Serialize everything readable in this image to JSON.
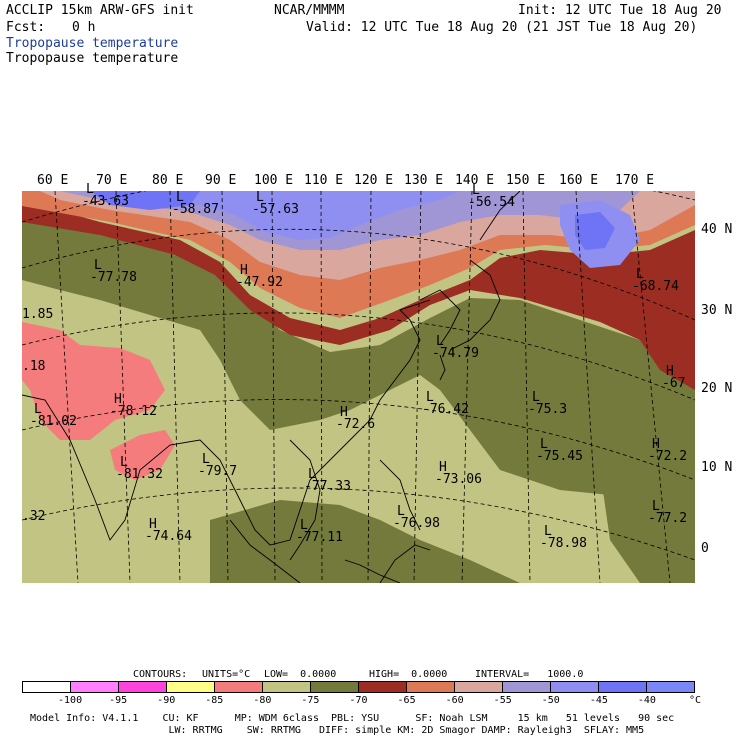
{
  "header": {
    "model_line": "ACCLIP 15km ARW-GFS init",
    "center": "NCAR/MMMM",
    "init": "Init: 12 UTC Tue 18 Aug 20",
    "fcst_label": "Fcst:",
    "fcst_value": "0 h",
    "valid": "Valid: 12 UTC Tue 18 Aug 20 (21 JST Tue 18 Aug 20)",
    "field_blue": "Tropopause temperature",
    "field_black": "Tropopause temperature"
  },
  "map": {
    "lon_labels": [
      "60 E",
      "70 E",
      "80 E",
      "90 E",
      "100 E",
      "110 E",
      "120 E",
      "130 E",
      "140 E",
      "150 E",
      "160 E",
      "170 E"
    ],
    "lat_labels": [
      "40 N",
      "30 N",
      "20 N",
      "10 N",
      "0"
    ],
    "extrema": [
      {
        "mark": "L",
        "value": "-43.63"
      },
      {
        "mark": "L",
        "value": "-58.87"
      },
      {
        "mark": "L",
        "value": "-57.63"
      },
      {
        "mark": "L",
        "value": "-56.54"
      },
      {
        "mark": "L",
        "value": "-77.78"
      },
      {
        "mark": "H",
        "value": "-47.92"
      },
      {
        "mark": "L",
        "value": "-68.74"
      },
      {
        "mark": "",
        "value": "1.85"
      },
      {
        "mark": "L",
        "value": "-74.79"
      },
      {
        "mark": "",
        "value": ".18"
      },
      {
        "mark": "H",
        "value": "-67"
      },
      {
        "mark": "H",
        "value": "-78.12"
      },
      {
        "mark": "L",
        "value": "-81.02"
      },
      {
        "mark": "H",
        "value": "-72.6"
      },
      {
        "mark": "L",
        "value": "-76.42"
      },
      {
        "mark": "L",
        "value": "-75.3"
      },
      {
        "mark": "L",
        "value": "-75.45"
      },
      {
        "mark": "H",
        "value": "-72.2"
      },
      {
        "mark": "L",
        "value": "-81.32"
      },
      {
        "mark": "L",
        "value": "-79.7"
      },
      {
        "mark": "L",
        "value": "-77.33"
      },
      {
        "mark": "H",
        "value": "-73.06"
      },
      {
        "mark": "",
        "value": ".32"
      },
      {
        "mark": "H",
        "value": "-74.64"
      },
      {
        "mark": "L",
        "value": "-77.11"
      },
      {
        "mark": "L",
        "value": "-76.98"
      },
      {
        "mark": "L",
        "value": "-78.98"
      },
      {
        "mark": "L",
        "value": "-77.2"
      }
    ],
    "colors": {
      "lt_-95": "#ff7fff",
      "-95_-90": "#ff44dd",
      "-90_-85": "#ffff88",
      "-85_-80": "#f57c7c",
      "-80_-75": "#c2c483",
      "-75_-70": "#737a3b",
      "-70_-65": "#9b2d22",
      "-65_-60": "#dd7a55",
      "-60_-55": "#d9a79d",
      "-55_-50": "#a096d6",
      "-50_-45": "#8f8ff2",
      "-45_-40": "#6f73f5",
      "ocean_white": "#ffffff"
    }
  },
  "contours_line": {
    "label": "CONTOURS:",
    "units": "UNITS=°C",
    "low": "LOW=  0.0000",
    "high": "HIGH=  0.0000",
    "interval": "INTERVAL=   1000.0"
  },
  "colorbar": {
    "colors": [
      "#ffffff",
      "#ff7fff",
      "#ff44dd",
      "#ffff88",
      "#f57c7c",
      "#c2c483",
      "#737a3b",
      "#9b2d22",
      "#dd7a55",
      "#d9a79d",
      "#a096d6",
      "#8f8ff2",
      "#6f73f5",
      "#7b86f7"
    ],
    "labels": [
      "-100",
      "-95",
      "-90",
      "-85",
      "-80",
      "-75",
      "-70",
      "-65",
      "-60",
      "-55",
      "-50",
      "-45",
      "-40",
      "°C"
    ]
  },
  "model_info": {
    "line1": "Model Info: V4.1.1    CU: KF      MP: WDM 6class  PBL: YSU      SF: Noah LSM     15 km   51 levels   90 sec",
    "line2": "                       LW: RRTMG    SW: RRTMG   DIFF: simple KM: 2D Smagor DAMP: Rayleigh3  SFLAY: MM5"
  }
}
